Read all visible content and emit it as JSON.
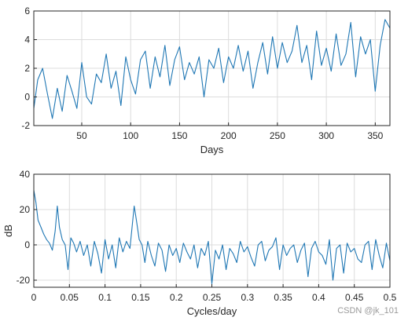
{
  "watermark": "CSDN @jk_101",
  "colors": {
    "series": "#1f77b4",
    "grid": "#dcdcdc",
    "axis": "#262626"
  },
  "chart_data": [
    {
      "type": "line",
      "xlabel": "Days",
      "ylabel": "",
      "xlim": [
        1,
        365
      ],
      "ylim": [
        -2,
        6
      ],
      "xticks": [
        50,
        100,
        150,
        200,
        250,
        300,
        350
      ],
      "yticks": [
        -2,
        0,
        2,
        4,
        6
      ],
      "grid": true,
      "series": [
        {
          "x": [
            1,
            5,
            10,
            15,
            20,
            25,
            30,
            35,
            40,
            45,
            50,
            55,
            60,
            65,
            70,
            75,
            80,
            85,
            90,
            95,
            100,
            105,
            110,
            115,
            120,
            125,
            130,
            135,
            140,
            145,
            150,
            155,
            160,
            165,
            170,
            175,
            180,
            185,
            190,
            195,
            200,
            205,
            210,
            215,
            220,
            225,
            230,
            235,
            240,
            245,
            250,
            255,
            260,
            265,
            270,
            275,
            280,
            285,
            290,
            295,
            300,
            305,
            310,
            315,
            320,
            325,
            330,
            335,
            340,
            345,
            350,
            355,
            360,
            365
          ],
          "values": [
            -0.8,
            1.2,
            2.0,
            0.2,
            -1.5,
            0.6,
            -1.0,
            1.5,
            0.4,
            -0.8,
            2.4,
            0.0,
            -0.5,
            1.6,
            1.0,
            3.0,
            0.6,
            1.8,
            -0.6,
            2.8,
            1.2,
            0.2,
            2.6,
            3.2,
            0.6,
            2.8,
            1.4,
            3.6,
            0.8,
            2.6,
            3.5,
            1.2,
            2.4,
            1.6,
            2.8,
            0.0,
            2.6,
            2.0,
            3.4,
            1.0,
            2.8,
            2.0,
            3.6,
            1.8,
            3.2,
            0.6,
            2.4,
            3.8,
            1.6,
            4.2,
            2.0,
            3.8,
            2.4,
            3.2,
            5.0,
            2.4,
            3.6,
            1.2,
            4.6,
            2.2,
            3.4,
            1.8,
            4.4,
            2.2,
            3.0,
            5.2,
            1.4,
            4.2,
            3.0,
            4.0,
            0.4,
            3.6,
            5.4,
            4.8
          ]
        }
      ]
    },
    {
      "type": "line",
      "xlabel": "Cycles/day",
      "ylabel": "dB",
      "xlim": [
        0,
        0.5
      ],
      "ylim": [
        -24,
        40
      ],
      "xticks": [
        0,
        0.05,
        0.1,
        0.15,
        0.2,
        0.25,
        0.3,
        0.35,
        0.4,
        0.45,
        0.5
      ],
      "xticklabels": [
        "0",
        "0.05",
        "0.1",
        "0.15",
        "0.2",
        "0.25",
        "0.3",
        "0.35",
        "0.4",
        "0.45",
        "0.5"
      ],
      "yticks": [
        -20,
        0,
        20,
        40
      ],
      "grid": true,
      "series": [
        {
          "x": [
            0.0,
            0.003,
            0.006,
            0.01,
            0.014,
            0.018,
            0.022,
            0.026,
            0.03,
            0.033,
            0.036,
            0.04,
            0.044,
            0.048,
            0.052,
            0.056,
            0.06,
            0.065,
            0.07,
            0.075,
            0.08,
            0.085,
            0.09,
            0.095,
            0.1,
            0.105,
            0.11,
            0.115,
            0.12,
            0.125,
            0.13,
            0.135,
            0.138,
            0.141,
            0.144,
            0.148,
            0.152,
            0.156,
            0.16,
            0.165,
            0.17,
            0.175,
            0.18,
            0.185,
            0.19,
            0.195,
            0.2,
            0.205,
            0.21,
            0.215,
            0.22,
            0.225,
            0.23,
            0.235,
            0.24,
            0.245,
            0.25,
            0.255,
            0.26,
            0.265,
            0.27,
            0.275,
            0.28,
            0.285,
            0.29,
            0.295,
            0.3,
            0.305,
            0.31,
            0.315,
            0.32,
            0.325,
            0.33,
            0.335,
            0.34,
            0.345,
            0.35,
            0.355,
            0.36,
            0.365,
            0.37,
            0.375,
            0.38,
            0.385,
            0.39,
            0.395,
            0.4,
            0.405,
            0.41,
            0.415,
            0.42,
            0.425,
            0.43,
            0.435,
            0.44,
            0.445,
            0.45,
            0.455,
            0.46,
            0.465,
            0.47,
            0.475,
            0.48,
            0.485,
            0.49,
            0.495,
            0.5
          ],
          "values": [
            31,
            24,
            14,
            10,
            6,
            3,
            1,
            -3,
            8,
            22,
            10,
            3,
            0,
            -14,
            4,
            1,
            -4,
            2,
            -6,
            0,
            -12,
            2,
            -5,
            -16,
            3,
            -8,
            0,
            -13,
            4,
            -4,
            2,
            -2,
            10,
            22,
            14,
            3,
            0,
            -10,
            2,
            -6,
            -12,
            1,
            -3,
            -15,
            0,
            -6,
            -2,
            -10,
            1,
            -4,
            -8,
            0,
            -13,
            -2,
            -6,
            2,
            -22,
            -3,
            -8,
            0,
            -14,
            -2,
            -5,
            -10,
            2,
            -4,
            -1,
            -7,
            -12,
            0,
            2,
            -9,
            -3,
            -1,
            4,
            -14,
            0,
            -6,
            -2,
            0,
            -10,
            -3,
            1,
            -18,
            -2,
            2,
            -4,
            -6,
            -11,
            3,
            -20,
            -2,
            0,
            -16,
            1,
            -4,
            -2,
            -8,
            -10,
            0,
            2,
            -14,
            3,
            -6,
            -13,
            1,
            -9
          ]
        }
      ]
    }
  ]
}
